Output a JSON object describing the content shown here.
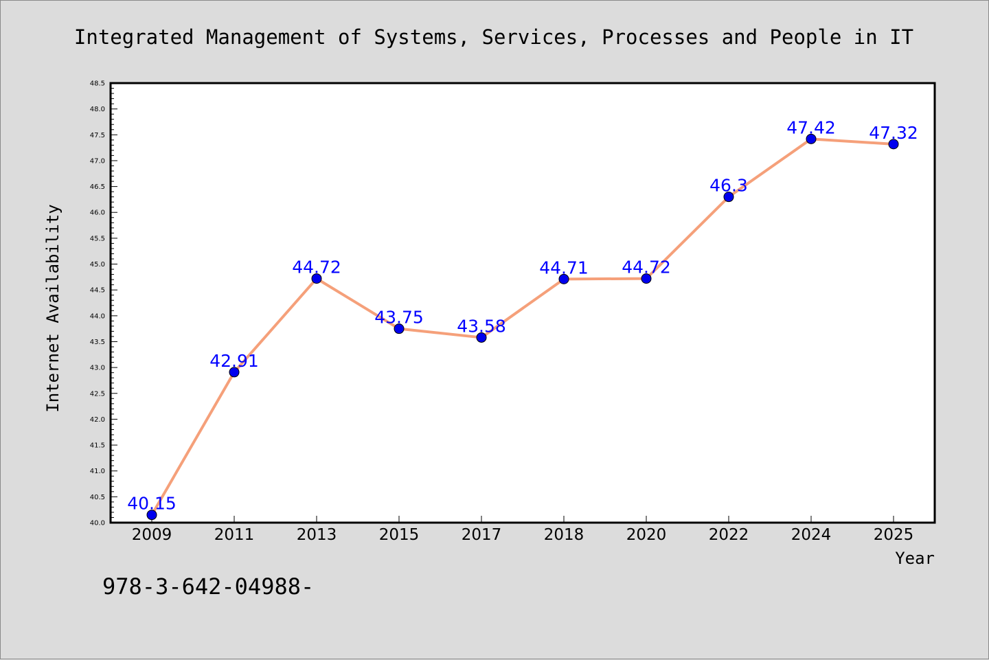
{
  "chart_data": {
    "type": "line",
    "title": "Integrated Management of Systems, Services, Processes and People in IT",
    "xlabel": "Year",
    "ylabel": "Internet Availability",
    "categories": [
      "2009",
      "2011",
      "2013",
      "2015",
      "2017",
      "2018",
      "2020",
      "2022",
      "2024",
      "2025"
    ],
    "series": [
      {
        "values": [
          40.15,
          42.91,
          44.72,
          43.75,
          43.58,
          44.71,
          44.72,
          46.3,
          47.42,
          47.32
        ],
        "data_labels": [
          "40.15",
          "42.91",
          "44.72",
          "43.75",
          "43.58",
          "44.71",
          "44.72",
          "46.3",
          "47.42",
          "47.32"
        ]
      }
    ],
    "ylim": [
      40.0,
      48.5
    ],
    "yticks": [
      "40.0",
      "40.5",
      "41.0",
      "41.5",
      "42.0",
      "42.5",
      "43.0",
      "43.5",
      "44.0",
      "44.5",
      "45.0",
      "45.5",
      "46.0",
      "46.5",
      "47.0",
      "47.5",
      "48.0",
      "48.5"
    ],
    "grid": false,
    "legend": "none",
    "line_color": "#f5a07a",
    "marker_color": "#0000ee",
    "label_color": "#0000ff"
  },
  "footer": {
    "isbn": "978-3-642-04988-"
  }
}
